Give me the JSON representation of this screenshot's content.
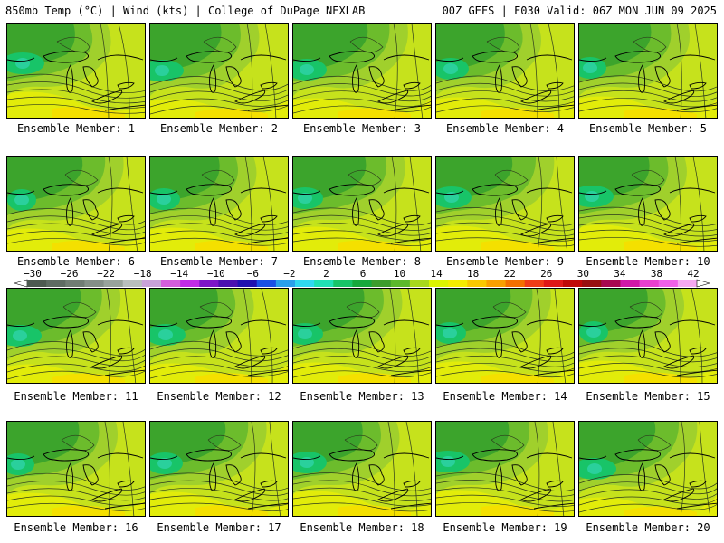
{
  "header": {
    "left": "850mb Temp (°C) | Wind (kts) | College of DuPage NEXLAB",
    "right": "00Z GEFS | F030 Valid: 06Z MON JUN 09 2025"
  },
  "panels": [
    {
      "label": "Ensemble Member: 1"
    },
    {
      "label": "Ensemble Member: 2"
    },
    {
      "label": "Ensemble Member: 3"
    },
    {
      "label": "Ensemble Member: 4"
    },
    {
      "label": "Ensemble Member: 5"
    },
    {
      "label": "Ensemble Member: 6"
    },
    {
      "label": "Ensemble Member: 7"
    },
    {
      "label": "Ensemble Member: 8"
    },
    {
      "label": "Ensemble Member: 9"
    },
    {
      "label": "Ensemble Member: 10"
    },
    {
      "label": "Ensemble Member: 11"
    },
    {
      "label": "Ensemble Member: 12"
    },
    {
      "label": "Ensemble Member: 13"
    },
    {
      "label": "Ensemble Member: 14"
    },
    {
      "label": "Ensemble Member: 15"
    },
    {
      "label": "Ensemble Member: 16"
    },
    {
      "label": "Ensemble Member: 17"
    },
    {
      "label": "Ensemble Member: 18"
    },
    {
      "label": "Ensemble Member: 19"
    },
    {
      "label": "Ensemble Member: 20"
    }
  ],
  "colorbar": {
    "ticks": [
      "-30",
      "-26",
      "-22",
      "-18",
      "-14",
      "-10",
      "-6",
      "-2",
      "2",
      "6",
      "10",
      "14",
      "18",
      "22",
      "26",
      "30",
      "34",
      "38",
      "42"
    ],
    "colors": [
      "#4d5a50",
      "#5e6b62",
      "#707c73",
      "#848f87",
      "#98a39b",
      "#b9bfbd",
      "#c9a2d8",
      "#d55edc",
      "#c12be6",
      "#7d16c8",
      "#4b10b0",
      "#2010b0",
      "#1a50e6",
      "#2aa0ea",
      "#30d8f0",
      "#20e0b4",
      "#18c468",
      "#16a83c",
      "#3c9c2c",
      "#5cb82c",
      "#a8d81c",
      "#dcf400",
      "#f4ec00",
      "#f8c800",
      "#f8a000",
      "#f47000",
      "#f03c18",
      "#e01818",
      "#c00808",
      "#981010",
      "#a80850",
      "#d018a8",
      "#e840d0",
      "#f060e8",
      "#f6a8f2"
    ]
  }
}
